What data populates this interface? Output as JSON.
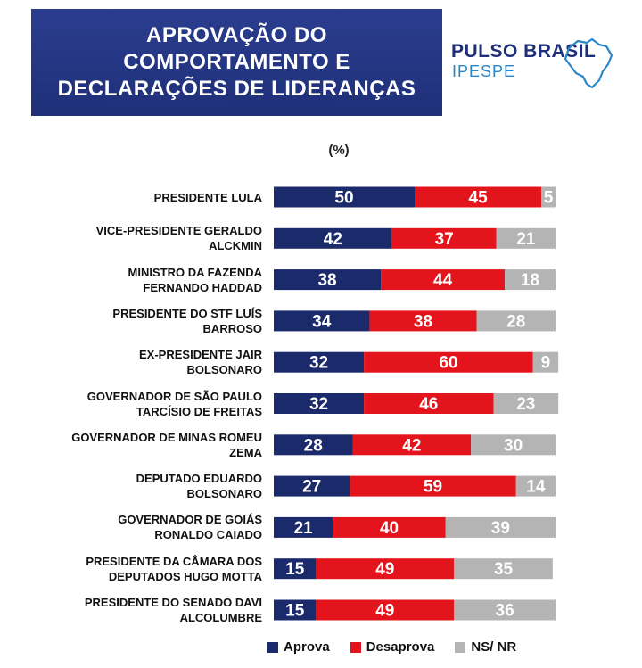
{
  "header": {
    "title_lines": [
      "APROVAÇÃO DO",
      "COMPORTAMENTO E",
      "DECLARAÇÕES DE LIDERANÇAS"
    ],
    "logo_line1": "PULSO BRASIL",
    "logo_line2": "IPESPE"
  },
  "colors": {
    "title_bg": "#1f2f78",
    "aprova": "#1b2a6b",
    "desaprova": "#e3141b",
    "nsnr": "#b4b4b4"
  },
  "chart_data": {
    "type": "bar",
    "orientation": "horizontal-stacked-100",
    "unit": "(%)",
    "categories": [
      [
        "PRESIDENTE LULA"
      ],
      [
        "VICE-PRESIDENTE GERALDO",
        "ALCKMIN"
      ],
      [
        "MINISTRO DA FAZENDA",
        "FERNANDO HADDAD"
      ],
      [
        "PRESIDENTE DO STF LUÍS",
        "BARROSO"
      ],
      [
        "EX-PRESIDENTE JAIR",
        "BOLSONARO"
      ],
      [
        "GOVERNADOR DE SÃO PAULO",
        "TARCÍSIO DE FREITAS"
      ],
      [
        "GOVERNADOR DE MINAS ROMEU",
        "ZEMA"
      ],
      [
        "DEPUTADO EDUARDO",
        "BOLSONARO"
      ],
      [
        "GOVERNADOR DE GOIÁS",
        "RONALDO CAIADO"
      ],
      [
        "PRESIDENTE DA CÂMARA DOS",
        "DEPUTADOS HUGO MOTTA"
      ],
      [
        "PRESIDENTE DO SENADO DAVI",
        "ALCOLUMBRE"
      ]
    ],
    "series": [
      {
        "name": "Aprova",
        "values": [
          50,
          42,
          38,
          34,
          32,
          32,
          28,
          27,
          21,
          15,
          15
        ]
      },
      {
        "name": "Desaprova",
        "values": [
          45,
          37,
          44,
          38,
          60,
          46,
          42,
          59,
          40,
          49,
          49
        ]
      },
      {
        "name": "NS/ NR",
        "values": [
          5,
          21,
          18,
          28,
          9,
          23,
          30,
          14,
          39,
          35,
          36
        ]
      }
    ],
    "xlim": [
      0,
      100
    ],
    "legend_position": "bottom",
    "grid": false,
    "data_labels": true
  }
}
